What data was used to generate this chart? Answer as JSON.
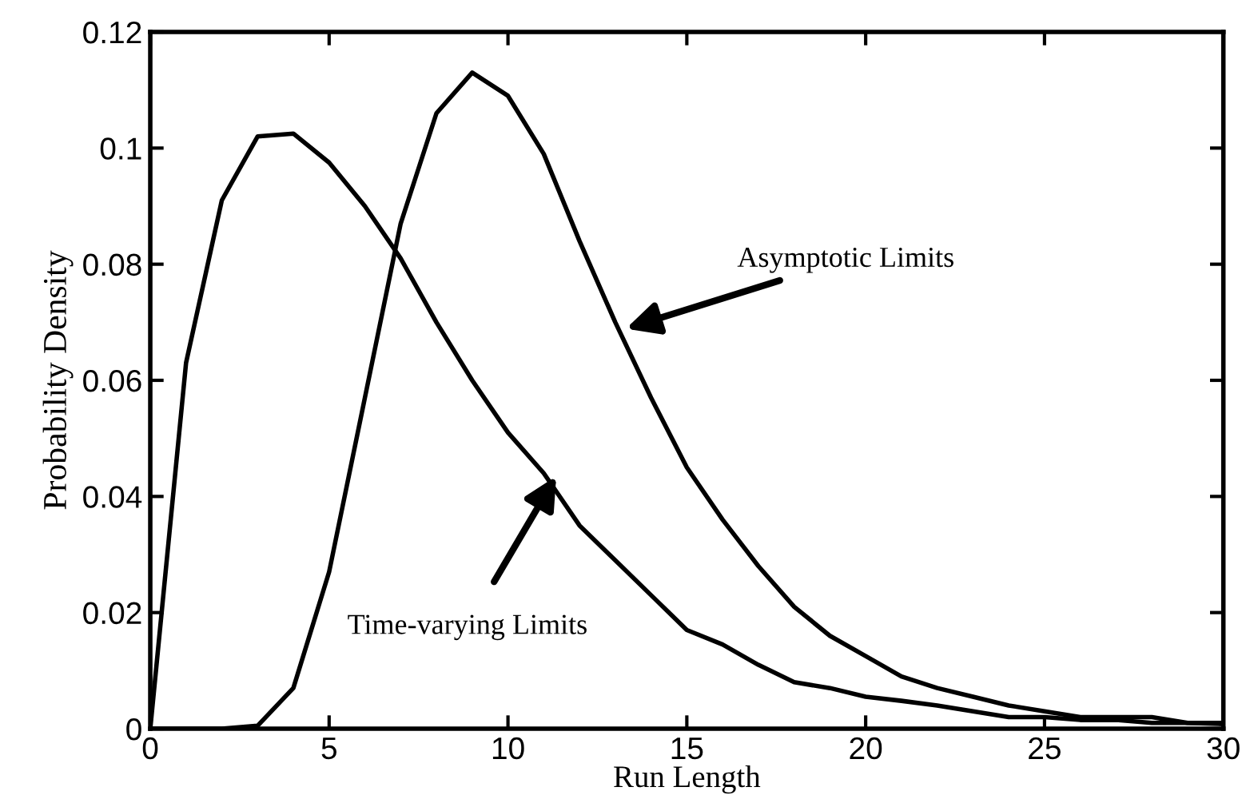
{
  "chart_data": {
    "type": "line",
    "xlabel": "Run Length",
    "ylabel": "Probability Density",
    "x": [
      0,
      1,
      2,
      3,
      4,
      5,
      6,
      7,
      8,
      9,
      10,
      11,
      12,
      13,
      14,
      15,
      16,
      17,
      18,
      19,
      20,
      21,
      22,
      23,
      24,
      25,
      26,
      27,
      28,
      29,
      30
    ],
    "series": [
      {
        "color": "#000000",
        "values": [
          0,
          0.063,
          0.091,
          0.102,
          0.1025,
          0.0975,
          0.09,
          0.081,
          0.07,
          0.06,
          0.051,
          0.044,
          0.035,
          0.029,
          0.023,
          0.017,
          0.0145,
          0.011,
          0.008,
          0.007,
          0.0055,
          0.0048,
          0.004,
          0.003,
          0.002,
          0.002,
          0.0015,
          0.0015,
          0.001,
          0.001,
          0.0008
        ]
      },
      {
        "color": "#000000",
        "values": [
          0,
          0,
          0,
          0.0005,
          0.007,
          0.027,
          0.057,
          0.087,
          0.106,
          0.113,
          0.109,
          0.099,
          0.084,
          0.07,
          0.057,
          0.045,
          0.036,
          0.028,
          0.021,
          0.016,
          0.0125,
          0.009,
          0.007,
          0.0055,
          0.004,
          0.003,
          0.002,
          0.002,
          0.002,
          0.001,
          0.001
        ]
      }
    ],
    "annotations": [
      {
        "text": "Asymptotic Limits",
        "x": 13.3,
        "y": 0.0689
      },
      {
        "text": "Time-varying Limits",
        "x": 11.35,
        "y": 0.0435
      }
    ],
    "xlim": [
      0,
      30
    ],
    "ylim": [
      0,
      0.12
    ],
    "xticks": [
      0,
      5,
      10,
      15,
      20,
      25,
      30
    ],
    "yticks": [
      0,
      0.02,
      0.04,
      0.06,
      0.08,
      0.1,
      0.12
    ],
    "grid": false,
    "legend": false,
    "marker": "none",
    "line_style": "solid"
  }
}
